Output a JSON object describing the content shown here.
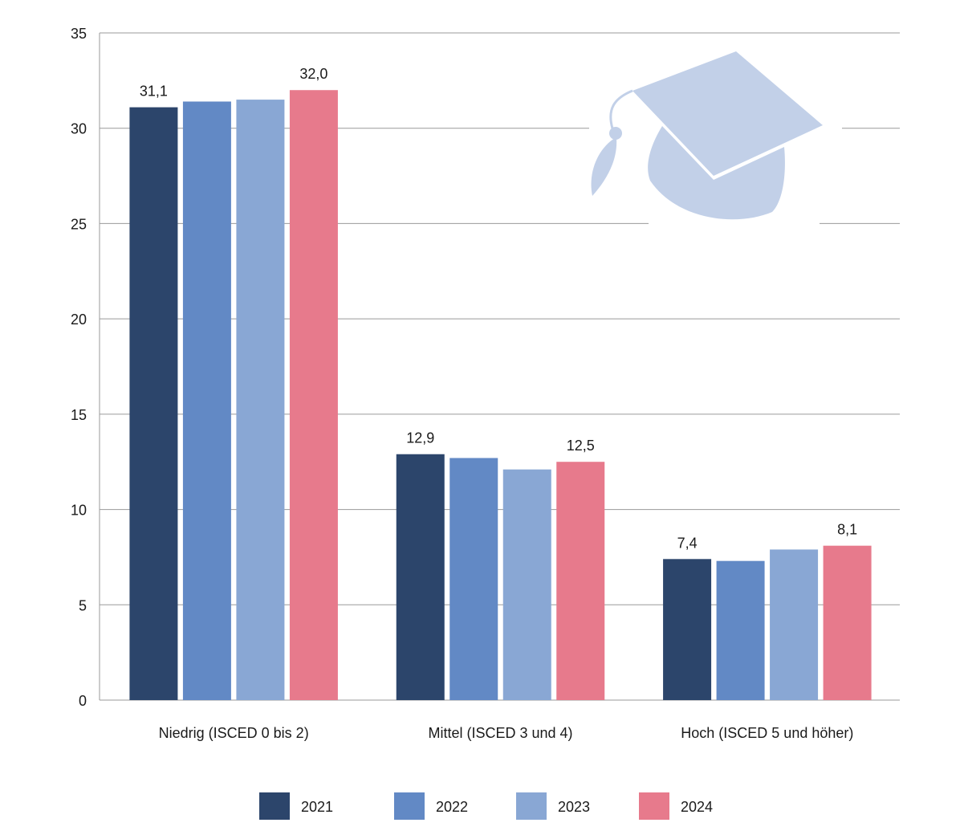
{
  "chart_data": {
    "type": "bar",
    "title": "",
    "xlabel": "",
    "ylabel": "",
    "ylim": [
      0,
      35
    ],
    "yticks": [
      0,
      5,
      10,
      15,
      20,
      25,
      30,
      35
    ],
    "grid": true,
    "categories": [
      "Niedrig (ISCED 0 bis 2)",
      "Mittel (ISCED 3 und 4)",
      "Hoch (ISCED 5 und höher)"
    ],
    "series": [
      {
        "name": "2021",
        "color": "#2c456b",
        "values": [
          31.1,
          12.9,
          7.4
        ],
        "labels": [
          "31,1",
          "12,9",
          "7,4"
        ]
      },
      {
        "name": "2022",
        "color": "#6289c5",
        "values": [
          31.4,
          12.7,
          7.3
        ],
        "labels": [
          "",
          "",
          ""
        ]
      },
      {
        "name": "2023",
        "color": "#89a7d4",
        "values": [
          31.5,
          12.1,
          7.9
        ],
        "labels": [
          "",
          "",
          ""
        ]
      },
      {
        "name": "2024",
        "color": "#e77a8c",
        "values": [
          32.0,
          12.5,
          8.1
        ],
        "labels": [
          "32,0",
          "12,5",
          "8,1"
        ]
      }
    ],
    "legend_position": "bottom",
    "decoration": {
      "icon": "graduation-cap-icon",
      "color": "#c2d0e8"
    }
  }
}
